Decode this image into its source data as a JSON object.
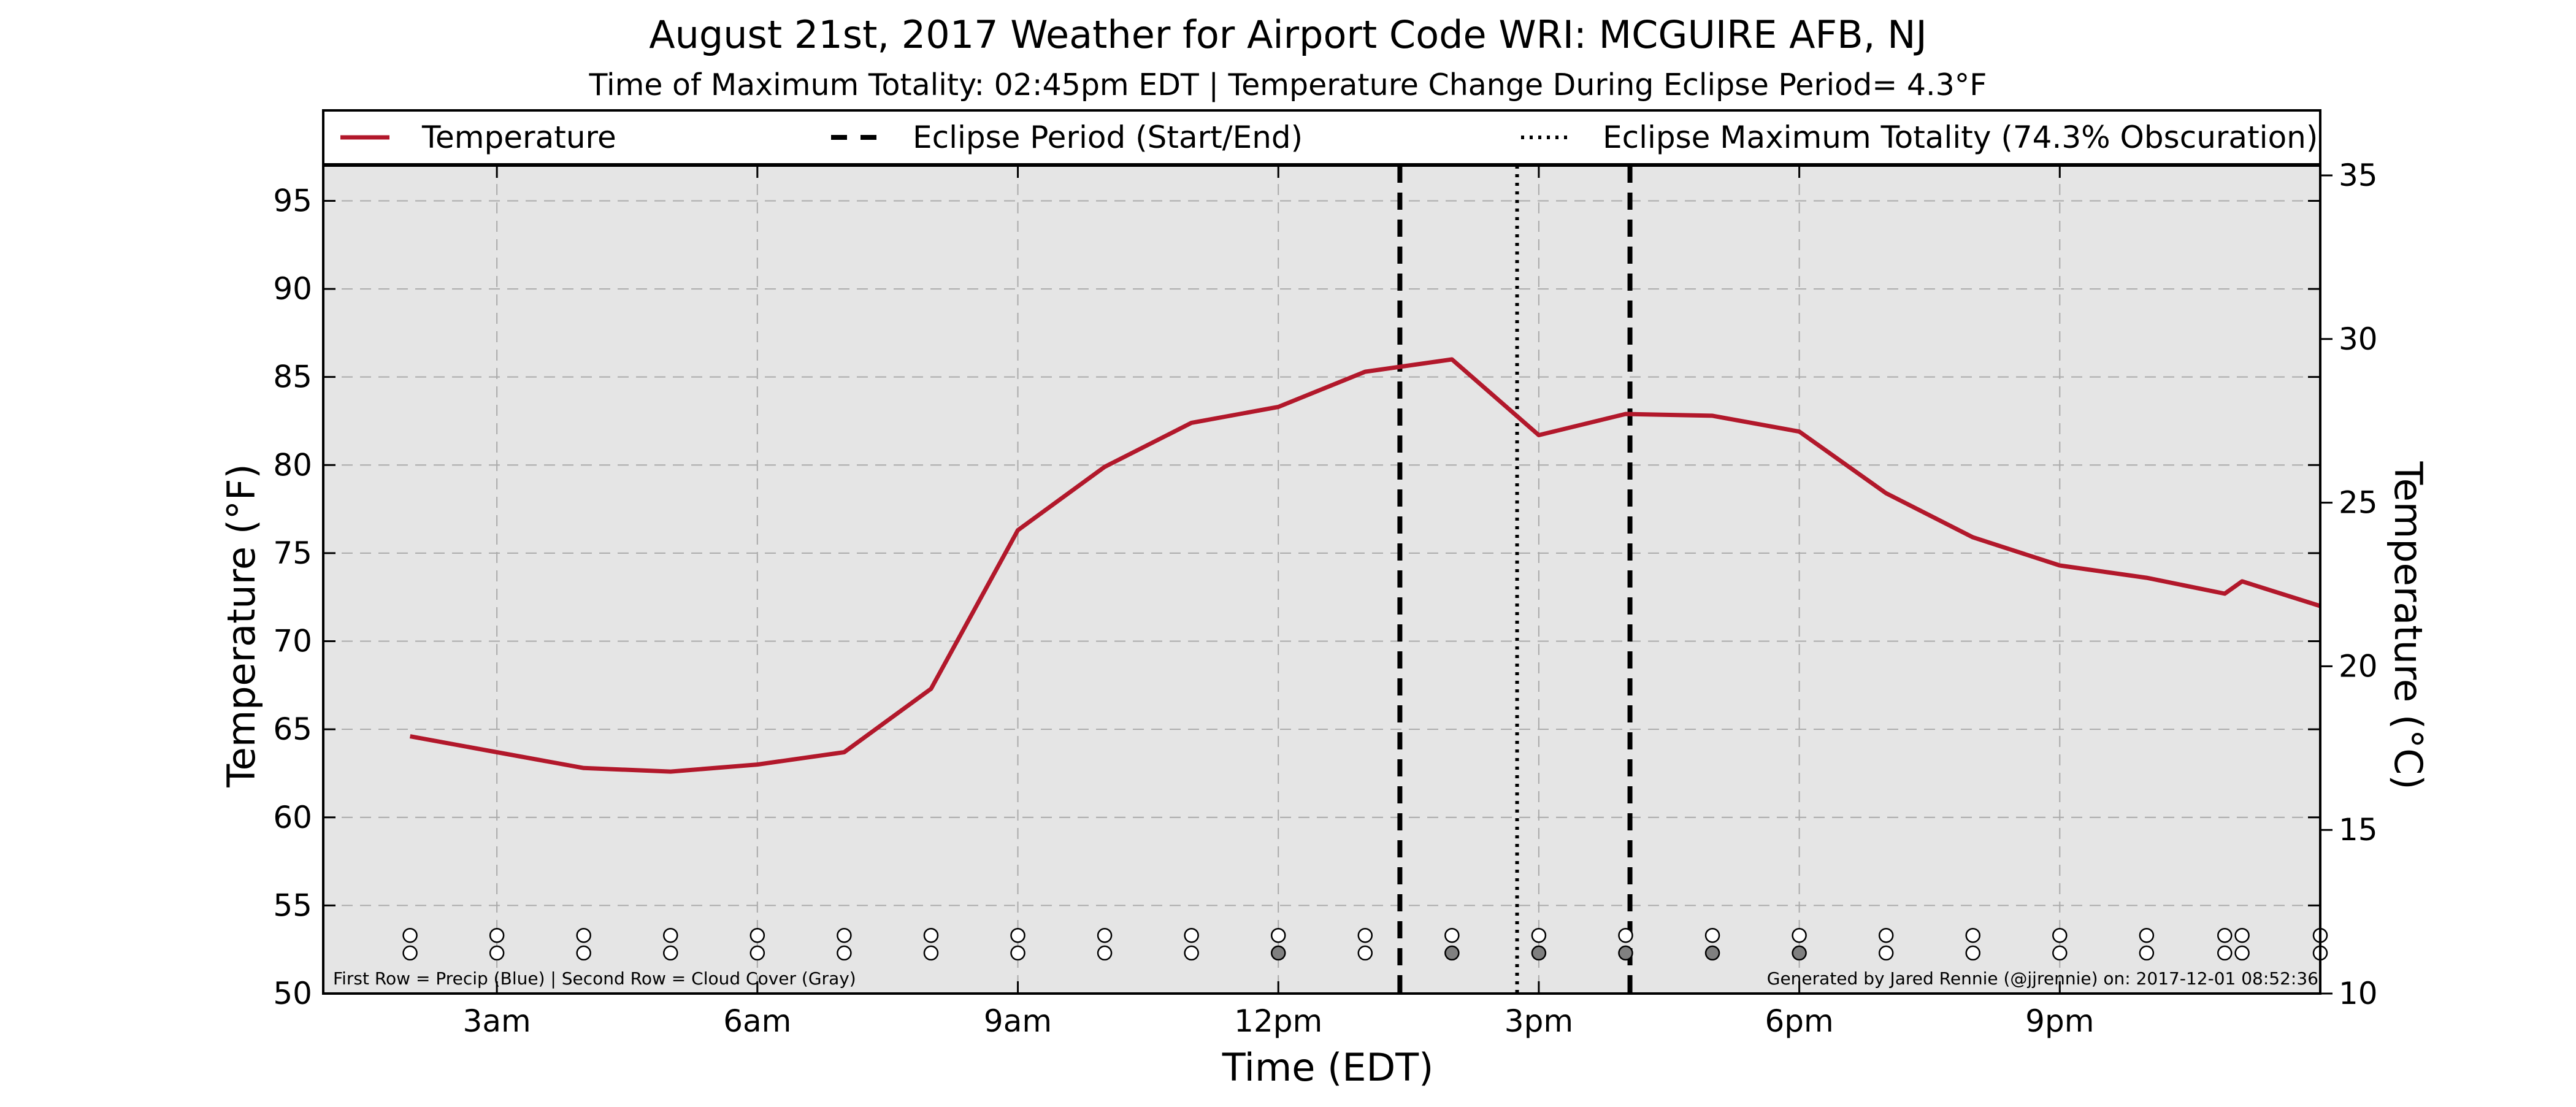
{
  "chart_data": {
    "type": "line",
    "title": "August 21st, 2017 Weather for Airport Code WRI: MCGUIRE AFB, NJ",
    "subtitle": "Time of Maximum Totality: 02:45pm EDT | Temperature Change During Eclipse Period= 4.3°F",
    "xlabel": "Time (EDT)",
    "ylabel": "Temperature (°F)",
    "ylabel_right": "Temperature (°C)",
    "x_unit": "hour of day (EDT)",
    "xlim": [
      1,
      24
    ],
    "ylim": [
      50,
      97
    ],
    "ylim_right": [
      10,
      35.3
    ],
    "x_ticks": [
      {
        "value": 3,
        "label": "3am"
      },
      {
        "value": 6,
        "label": "6am"
      },
      {
        "value": 9,
        "label": "9am"
      },
      {
        "value": 12,
        "label": "12pm"
      },
      {
        "value": 15,
        "label": "3pm"
      },
      {
        "value": 18,
        "label": "6pm"
      },
      {
        "value": 21,
        "label": "9pm"
      }
    ],
    "y_ticks": [
      50,
      55,
      60,
      65,
      70,
      75,
      80,
      85,
      90,
      95
    ],
    "y_ticks_right": [
      10,
      15,
      20,
      25,
      30,
      35
    ],
    "grid": true,
    "legend_position": "top",
    "legend": [
      {
        "label": "Temperature",
        "style": "solid",
        "color": "#b2182b"
      },
      {
        "label": "Eclipse Period (Start/End)",
        "style": "dashed",
        "color": "#000000"
      },
      {
        "label": "Eclipse Maximum Totality (74.3% Obscuration)",
        "style": "dotted",
        "color": "#000000"
      }
    ],
    "series": [
      {
        "name": "Temperature",
        "color": "#b2182b",
        "x": [
          2,
          3,
          4,
          5,
          6,
          7,
          8,
          9,
          10,
          11,
          12,
          13,
          14,
          15,
          16,
          17,
          18,
          19,
          20,
          21,
          22,
          22.9,
          23.1,
          24
        ],
        "y": [
          64.6,
          63.7,
          62.8,
          62.6,
          63.0,
          63.7,
          67.3,
          76.3,
          79.9,
          82.4,
          83.3,
          85.3,
          86.0,
          81.7,
          82.9,
          82.8,
          81.9,
          78.4,
          75.9,
          74.3,
          73.6,
          72.7,
          73.4,
          72.0
        ]
      }
    ],
    "eclipse_start": 13.4,
    "eclipse_max": 14.75,
    "eclipse_end": 16.05,
    "markers": {
      "x": [
        2,
        3,
        4,
        5,
        6,
        7,
        8,
        9,
        10,
        11,
        12,
        13,
        14,
        15,
        16,
        17,
        18,
        19,
        20,
        21,
        22,
        22.9,
        23.1,
        24
      ],
      "precip_row_y": 53.3,
      "cloud_row_y": 52.3,
      "cloud_gray_x": [
        12,
        14,
        15,
        16,
        17,
        18
      ],
      "open_color": "#ffffff",
      "gray_color": "#808080"
    },
    "footnote_left": "First Row = Precip (Blue) | Second Row = Cloud Cover (Gray)",
    "footnote_right": "Generated by Jared Rennie (@jjrennie) on: 2017-12-01 08:52:36",
    "colors": {
      "plot_background": "#e5e5e5",
      "grid": "#aaaaaa",
      "temperature_line": "#b2182b",
      "eclipse_lines": "#000000"
    }
  }
}
